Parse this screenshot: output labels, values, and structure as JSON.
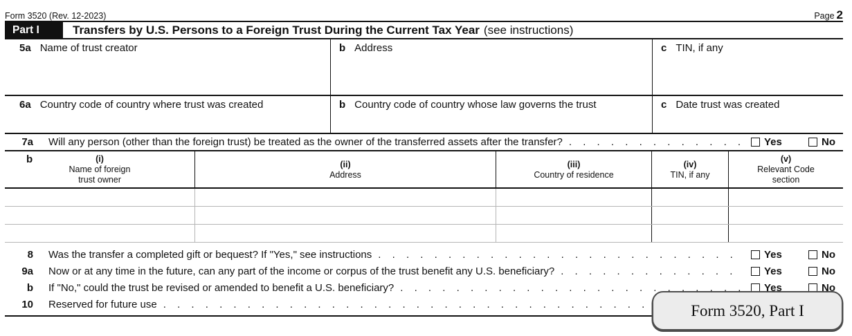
{
  "header": {
    "form_rev": "Form 3520 (Rev. 12-2023)",
    "page_word": "Page",
    "page_num": "2"
  },
  "part1": {
    "label": "Part I",
    "title": "Transfers by U.S. Persons to a Foreign Trust During the Current Tax Year",
    "subtitle": "(see instructions)"
  },
  "line5": {
    "a_num": "5a",
    "a_label": "Name of trust creator",
    "b_num": "b",
    "b_label": "Address",
    "c_num": "c",
    "c_label": "TIN, if any"
  },
  "line6": {
    "a_num": "6a",
    "a_label": "Country code of country where trust was created",
    "b_num": "b",
    "b_label": "Country code of country whose law governs the trust",
    "c_num": "c",
    "c_label": "Date trust was created"
  },
  "line7a": {
    "num": "7a",
    "text": "Will any person (other than the foreign trust) be treated as the owner of the transferred assets after the transfer?"
  },
  "table7b": {
    "row_num": "b",
    "headers": [
      {
        "tag": "(i)",
        "label": "Name of foreign\ntrust owner"
      },
      {
        "tag": "(ii)",
        "label": "Address"
      },
      {
        "tag": "(iii)",
        "label": "Country of residence"
      },
      {
        "tag": "(iv)",
        "label": "TIN, if any"
      },
      {
        "tag": "(v)",
        "label": "Relevant Code\nsection"
      }
    ]
  },
  "questions": [
    {
      "num": "8",
      "text": "Was the transfer a completed gift or bequest? If \"Yes,\" see instructions"
    },
    {
      "num": "9a",
      "text": "Now or at any time in the future, can any part of the income or corpus of the trust benefit any U.S. beneficiary?"
    },
    {
      "num": "b",
      "text": "If \"No,\" could the trust be revised or amended to benefit a U.S. beneficiary?"
    },
    {
      "num": "10",
      "text": "Reserved for future use"
    }
  ],
  "labels": {
    "yes": "Yes",
    "no": "No",
    "leader_dots": ". . . . . . . . . . . . . . . . . . . . . . . . . . . . . . . . . . . . . . . . . . . . . . . . . . . . . . . . . . . ."
  },
  "callout": {
    "text": "Form 3520, Part I"
  }
}
